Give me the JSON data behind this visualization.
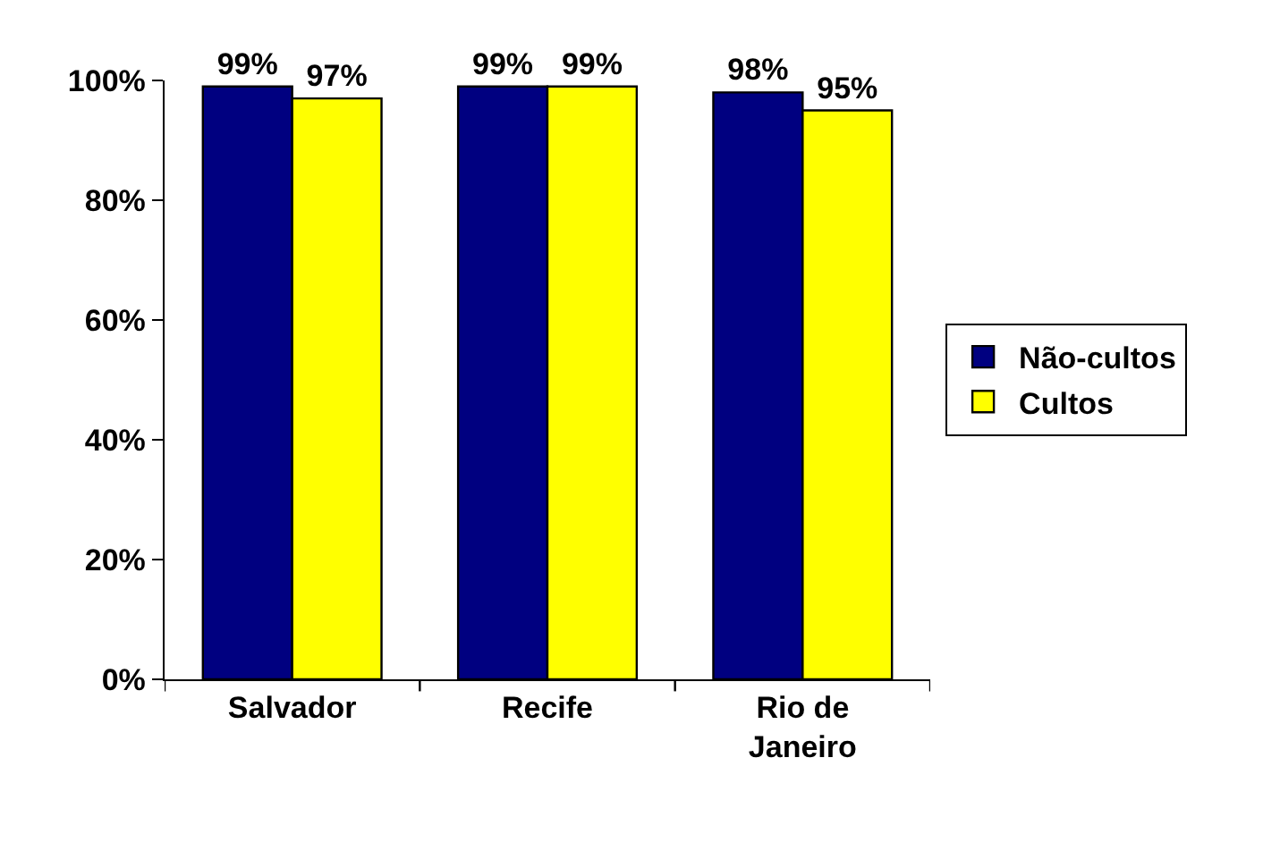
{
  "chart_data": {
    "type": "bar",
    "categories": [
      "Salvador",
      "Recife",
      "Rio de Janeiro"
    ],
    "series": [
      {
        "name": "Não-cultos",
        "color": "#000080",
        "values": [
          99,
          99,
          98
        ],
        "value_labels": [
          "99%",
          "99%",
          "98%"
        ]
      },
      {
        "name": "Cultos",
        "color": "#ffff00",
        "values": [
          97,
          99,
          95
        ],
        "value_labels": [
          "97%",
          "99%",
          "95%"
        ]
      }
    ],
    "ylim": [
      0,
      100
    ],
    "yticks": [
      {
        "value": 0,
        "label": "0%"
      },
      {
        "value": 20,
        "label": "20%"
      },
      {
        "value": 40,
        "label": "40%"
      },
      {
        "value": 60,
        "label": "60%"
      },
      {
        "value": 80,
        "label": "80%"
      },
      {
        "value": 100,
        "label": "100%"
      }
    ],
    "grid": false,
    "legend": "right"
  }
}
